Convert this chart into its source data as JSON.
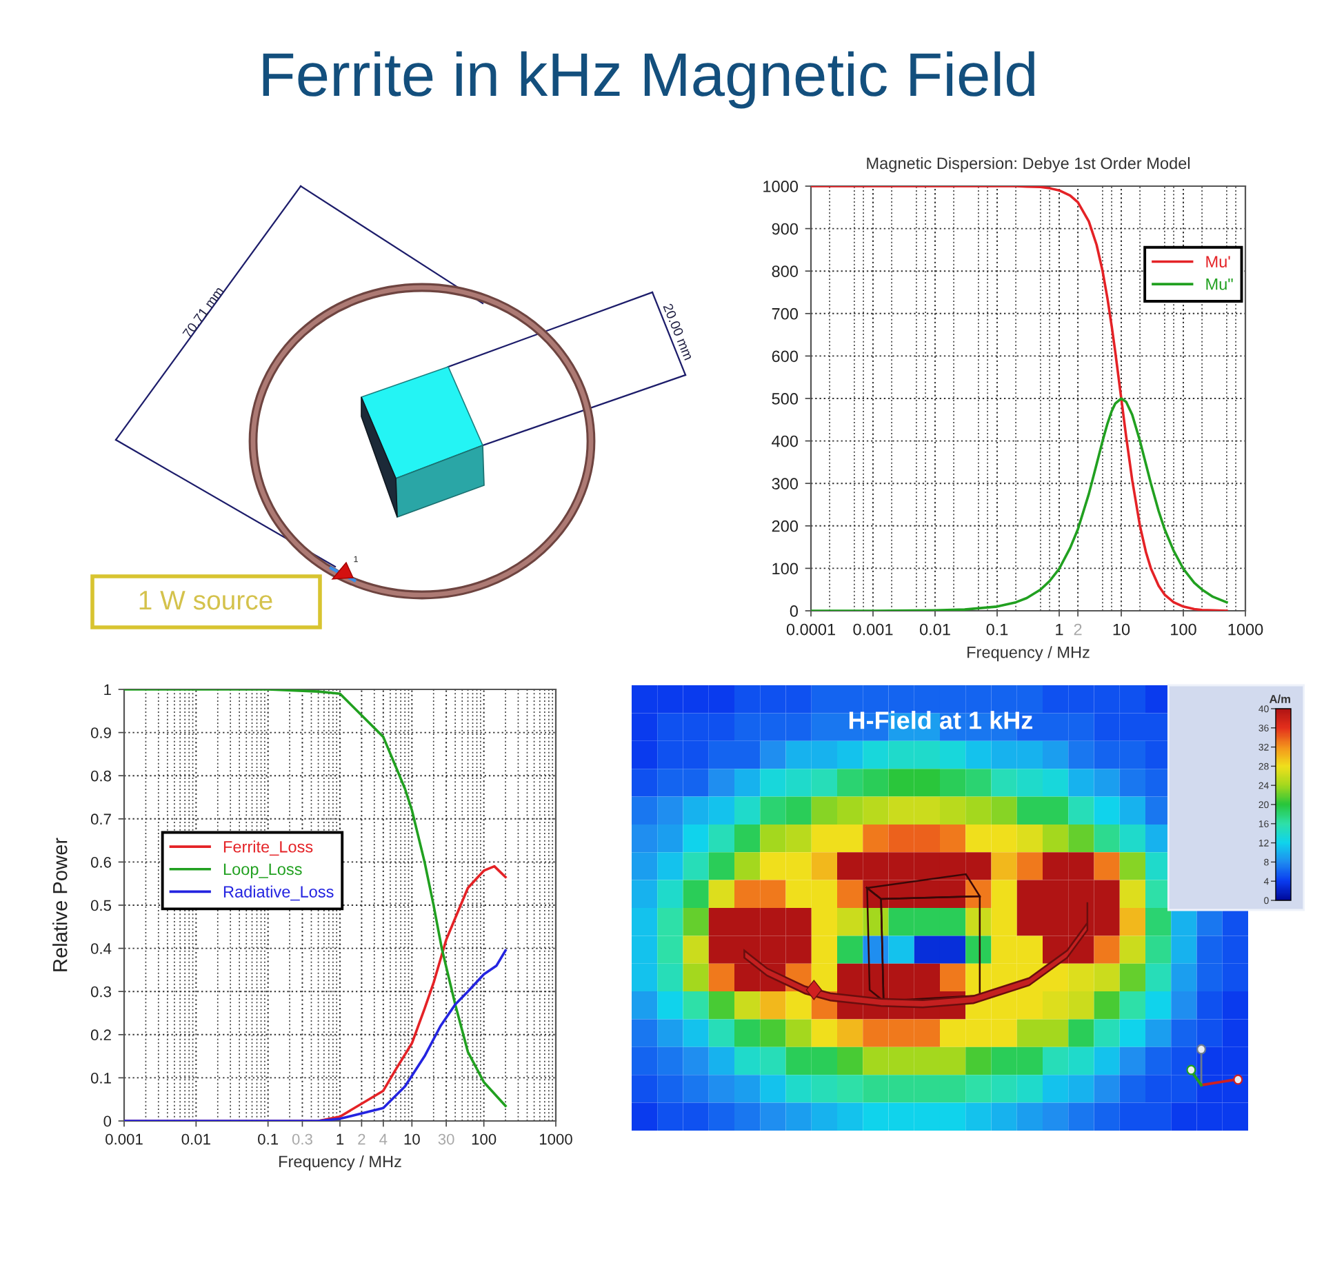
{
  "chart_data": [
    {
      "type": "other",
      "title": "Ferrite in kHz Magnetic Field",
      "annotations": [
        "70.71 mm",
        "20.00 mm",
        "1",
        "1 W source"
      ]
    },
    {
      "type": "line",
      "title": "Magnetic Dispersion: Debye 1st Order Model",
      "xlabel": "Frequency / MHz",
      "log": "x",
      "xlim": [
        0.0001,
        1000
      ],
      "ylim": [
        0,
        1000
      ],
      "xticks": [
        0.0001,
        0.001,
        0.01,
        0.1,
        1,
        2,
        10,
        100,
        1000
      ],
      "yticks": [
        0,
        100,
        200,
        300,
        400,
        500,
        600,
        700,
        800,
        900,
        1000
      ],
      "grid": true,
      "legend": "top right",
      "x": [
        0.0001,
        0.001,
        0.01,
        0.03,
        0.1,
        0.2,
        0.3,
        0.5,
        0.7,
        1,
        1.5,
        2,
        3,
        4,
        5,
        6,
        7,
        8,
        10,
        12,
        15,
        20,
        25,
        30,
        40,
        50,
        70,
        100,
        150,
        200,
        300,
        500
      ],
      "series": [
        {
          "name": "Mu'",
          "color": "#e42226",
          "values": [
            1000,
            1000,
            1000,
            1000,
            1000,
            1000,
            999,
            998,
            995,
            990,
            978,
            962,
            917,
            862,
            800,
            735,
            671,
            610,
            500,
            410,
            308,
            200,
            138,
            100,
            59,
            38,
            20,
            10,
            4,
            2,
            1,
            0
          ]
        },
        {
          "name": "Mu\"",
          "color": "#21a020",
          "values": [
            0,
            0,
            1,
            3,
            10,
            20,
            30,
            50,
            70,
            99,
            148,
            192,
            275,
            345,
            400,
            441,
            470,
            488,
            500,
            492,
            462,
            400,
            345,
            300,
            235,
            192,
            141,
            99,
            66,
            50,
            33,
            20
          ]
        }
      ]
    },
    {
      "type": "line",
      "xlabel": "Frequency / MHz",
      "ylabel": "Relative Power",
      "log": "x",
      "xlim": [
        0.001,
        1000
      ],
      "ylim": [
        0,
        1
      ],
      "xticks": [
        0.001,
        0.01,
        0.1,
        0.3,
        1,
        2,
        4,
        10,
        30,
        100,
        1000
      ],
      "yticks": [
        0,
        0.1,
        0.2,
        0.3,
        0.4,
        0.5,
        0.6,
        0.7,
        0.8,
        0.9,
        1
      ],
      "grid": true,
      "legend": "left",
      "series": [
        {
          "name": "Ferrite_Loss",
          "color": "#e42226",
          "x": [
            0.001,
            0.5,
            1,
            4,
            6,
            10,
            15,
            20,
            30,
            40,
            60,
            100,
            140,
            200
          ],
          "values": [
            0,
            0,
            0.01,
            0.07,
            0.12,
            0.18,
            0.26,
            0.32,
            0.42,
            0.47,
            0.54,
            0.58,
            0.59,
            0.565
          ]
        },
        {
          "name": "Loop_Loss",
          "color": "#21a020",
          "x": [
            0.001,
            0.1,
            0.5,
            1,
            4,
            6,
            8,
            10,
            15,
            20,
            26,
            40,
            60,
            100,
            200
          ],
          "values": [
            1,
            1,
            0.995,
            0.99,
            0.89,
            0.82,
            0.77,
            0.72,
            0.6,
            0.5,
            0.4,
            0.27,
            0.16,
            0.09,
            0.035
          ]
        },
        {
          "name": "Radiative_Loss",
          "color": "#2424e0",
          "x": [
            0.001,
            0.5,
            1,
            4,
            8,
            15,
            25,
            40,
            60,
            100,
            150,
            200
          ],
          "values": [
            0,
            0,
            0.005,
            0.03,
            0.08,
            0.15,
            0.22,
            0.27,
            0.3,
            0.34,
            0.36,
            0.395
          ]
        }
      ]
    },
    {
      "type": "heatmap",
      "title": "H-Field at 1 kHz",
      "clabel": "A/m",
      "clim": [
        0,
        40
      ],
      "cticks": [
        0,
        4,
        8,
        12,
        16,
        20,
        24,
        28,
        32,
        36,
        40
      ],
      "categories": [
        null,
        null,
        null,
        null,
        null,
        null,
        null,
        null,
        null,
        null,
        null,
        null,
        null,
        null,
        null,
        null,
        null,
        null,
        null,
        null,
        null,
        null,
        null,
        null
      ],
      "y_categories": [
        null,
        null,
        null,
        null,
        null,
        null,
        null,
        null,
        null,
        null,
        null,
        null,
        null,
        null,
        null,
        null
      ],
      "cells": [
        [
          4,
          4,
          4,
          4,
          5,
          5,
          5,
          6,
          6,
          6,
          6,
          6,
          6,
          6,
          6,
          6,
          5,
          5,
          5,
          5,
          4,
          null,
          null,
          null
        ],
        [
          4,
          5,
          5,
          5,
          6,
          6,
          6,
          7,
          7,
          7,
          9,
          9,
          7,
          7,
          7,
          6,
          6,
          6,
          5,
          5,
          5,
          null,
          null,
          null
        ],
        [
          4,
          5,
          5,
          6,
          6,
          8,
          10,
          10,
          11,
          13,
          14,
          14,
          13,
          11,
          10,
          10,
          9,
          7,
          6,
          6,
          5,
          null,
          null,
          null
        ],
        [
          5,
          6,
          6,
          8,
          10,
          13,
          14,
          15,
          18,
          19,
          20,
          20,
          19,
          18,
          15,
          14,
          13,
          10,
          9,
          7,
          6,
          null,
          null,
          null
        ],
        [
          7,
          8,
          10,
          11,
          14,
          18,
          19,
          23,
          24,
          25,
          26,
          26,
          25,
          24,
          23,
          19,
          19,
          15,
          12,
          10,
          7,
          null,
          null,
          null
        ],
        [
          8,
          9,
          12,
          15,
          19,
          24,
          25,
          28,
          28,
          33,
          34,
          34,
          33,
          28,
          28,
          27,
          24,
          22,
          17,
          14,
          10,
          null,
          null,
          null
        ],
        [
          9,
          11,
          15,
          19,
          24,
          28,
          28,
          30,
          40,
          40,
          40,
          40,
          40,
          40,
          30,
          33,
          40,
          40,
          33,
          23,
          14,
          null,
          null,
          null
        ],
        [
          10,
          14,
          19,
          27,
          33,
          33,
          28,
          28,
          33,
          40,
          40,
          40,
          40,
          33,
          28,
          40,
          40,
          40,
          40,
          27,
          16,
          null,
          null,
          null
        ],
        [
          11,
          16,
          22,
          40,
          40,
          40,
          40,
          28,
          26,
          24,
          19,
          19,
          19,
          26,
          28,
          40,
          40,
          40,
          40,
          30,
          18,
          10,
          7,
          5
        ],
        [
          11,
          16,
          26,
          40,
          40,
          40,
          40,
          28,
          19,
          8,
          11,
          3,
          3,
          19,
          28,
          28,
          40,
          40,
          33,
          26,
          17,
          10,
          6,
          5
        ],
        [
          11,
          15,
          24,
          33,
          40,
          40,
          33,
          28,
          40,
          40,
          40,
          40,
          33,
          28,
          28,
          28,
          28,
          27,
          26,
          22,
          15,
          9,
          6,
          5
        ],
        [
          9,
          12,
          16,
          21,
          26,
          30,
          28,
          33,
          40,
          40,
          40,
          40,
          40,
          28,
          28,
          28,
          27,
          26,
          21,
          16,
          12,
          8,
          5,
          4
        ],
        [
          7,
          9,
          11,
          15,
          19,
          21,
          24,
          28,
          30,
          33,
          33,
          33,
          28,
          28,
          28,
          24,
          24,
          19,
          15,
          12,
          9,
          6,
          5,
          4
        ],
        [
          6,
          7,
          8,
          10,
          14,
          15,
          19,
          19,
          21,
          24,
          24,
          24,
          24,
          21,
          19,
          19,
          15,
          14,
          11,
          8,
          6,
          5,
          4,
          4
        ],
        [
          5,
          6,
          7,
          8,
          9,
          11,
          14,
          15,
          16,
          17,
          17,
          17,
          17,
          16,
          15,
          14,
          11,
          10,
          8,
          6,
          5,
          5,
          4,
          4
        ],
        [
          4,
          5,
          5,
          6,
          7,
          8,
          9,
          10,
          11,
          12,
          12,
          12,
          12,
          11,
          10,
          9,
          8,
          7,
          6,
          5,
          5,
          4,
          4,
          4
        ]
      ]
    }
  ]
}
